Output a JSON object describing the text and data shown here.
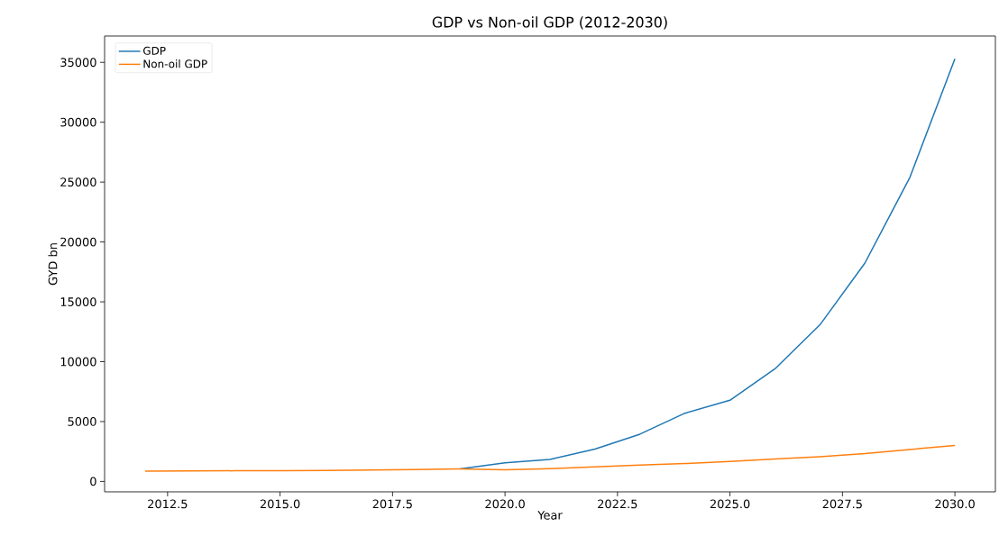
{
  "chart_data": {
    "type": "line",
    "title": "GDP vs Non-oil GDP (2012-2030)",
    "xlabel": "Year",
    "ylabel": "GYD bn",
    "x": [
      2012,
      2013,
      2014,
      2015,
      2016,
      2017,
      2018,
      2019,
      2020,
      2021,
      2022,
      2023,
      2024,
      2025,
      2026,
      2027,
      2028,
      2029,
      2030
    ],
    "series": [
      {
        "name": "GDP",
        "color": "#1f77b4",
        "values": [
          null,
          null,
          null,
          null,
          null,
          null,
          null,
          1050,
          1550,
          1840,
          2700,
          3950,
          5700,
          6780,
          9400,
          13080,
          18240,
          25400,
          35300
        ]
      },
      {
        "name": "Non-oil GDP",
        "color": "#ff7f0e",
        "values": [
          860,
          870,
          890,
          900,
          920,
          950,
          1000,
          1050,
          980,
          1060,
          1210,
          1360,
          1490,
          1660,
          1870,
          2070,
          2320,
          2670,
          3000
        ]
      }
    ],
    "xlim": [
      2011.1,
      2030.9
    ],
    "ylim": [
      -870,
      37200
    ],
    "xticks": [
      {
        "value": 2012.5,
        "label": "2012.5"
      },
      {
        "value": 2015,
        "label": "2015.0"
      },
      {
        "value": 2017.5,
        "label": "2017.5"
      },
      {
        "value": 2020,
        "label": "2020.0"
      },
      {
        "value": 2022.5,
        "label": "2022.5"
      },
      {
        "value": 2025,
        "label": "2025.0"
      },
      {
        "value": 2027.5,
        "label": "2027.5"
      },
      {
        "value": 2030,
        "label": "2030.0"
      }
    ],
    "yticks": [
      0,
      5000,
      10000,
      15000,
      20000,
      25000,
      30000,
      35000
    ],
    "legend": "top left",
    "grid": false,
    "marker": "none",
    "line_style": "solid"
  }
}
